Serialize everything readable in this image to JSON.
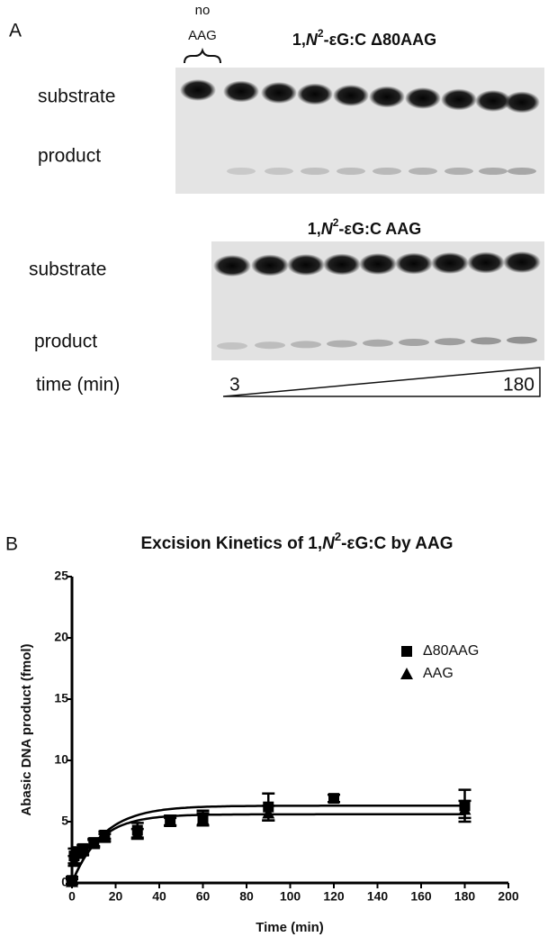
{
  "panel_a": {
    "label": "A",
    "no_aag": [
      "no",
      "AAG"
    ],
    "gel_1_title": {
      "pre": "1,",
      "italic": "N",
      "sup": "2",
      "post": "-εG:C Δ80AAG"
    },
    "gel_1_substrate": "substrate",
    "gel_1_product": "product",
    "gel_2_title": {
      "pre": "1,",
      "italic": "N",
      "sup": "2",
      "post": "-εG:C  AAG"
    },
    "gel_2_substrate": "substrate",
    "gel_2_product": "product",
    "time_label": "time (min)",
    "time_start": "3",
    "time_end": "180"
  },
  "chart_data": {
    "type": "scatter",
    "panel_label": "B",
    "title": {
      "pre": "Excision Kinetics of 1,",
      "italic": "N",
      "sup": "2",
      "post": "-εG:C by AAG"
    },
    "x_label": "Time (min)",
    "y_label": "Abasic DNA product (fmol)",
    "xlim": [
      0,
      200
    ],
    "xticks": [
      0,
      20,
      40,
      60,
      80,
      100,
      120,
      140,
      160,
      180,
      200
    ],
    "ylim": [
      0,
      25
    ],
    "yticks": [
      0,
      5,
      10,
      15,
      20,
      25
    ],
    "series": [
      {
        "name": "Δ80AAG",
        "marker": "square",
        "color": "#000000",
        "x": [
          0,
          1,
          3,
          5,
          10,
          15,
          30,
          45,
          60,
          90,
          120,
          180
        ],
        "values": [
          0.2,
          2.2,
          2.5,
          2.8,
          3.3,
          3.9,
          4.3,
          5.1,
          5.3,
          6.2,
          6.9,
          6.3
        ],
        "errors": [
          0.3,
          0.6,
          0.4,
          0.3,
          0.3,
          0.3,
          0.6,
          0.4,
          0.6,
          1.1,
          0.3,
          1.3
        ],
        "fit": {
          "plateau": 6.3,
          "rate": 0.07
        }
      },
      {
        "name": "AAG",
        "marker": "triangle",
        "color": "#000000",
        "x": [
          0,
          1,
          3,
          5,
          10,
          15,
          30,
          45,
          60,
          90,
          180
        ],
        "values": [
          0.1,
          1.8,
          2.4,
          2.6,
          3.2,
          3.7,
          4.0,
          5.0,
          5.2,
          5.7,
          6.0
        ],
        "errors": [
          0.2,
          0.4,
          0.3,
          0.3,
          0.3,
          0.3,
          0.4,
          0.3,
          0.5,
          0.6,
          0.7
        ],
        "fit": {
          "plateau": 5.6,
          "rate": 0.08
        }
      }
    ]
  }
}
